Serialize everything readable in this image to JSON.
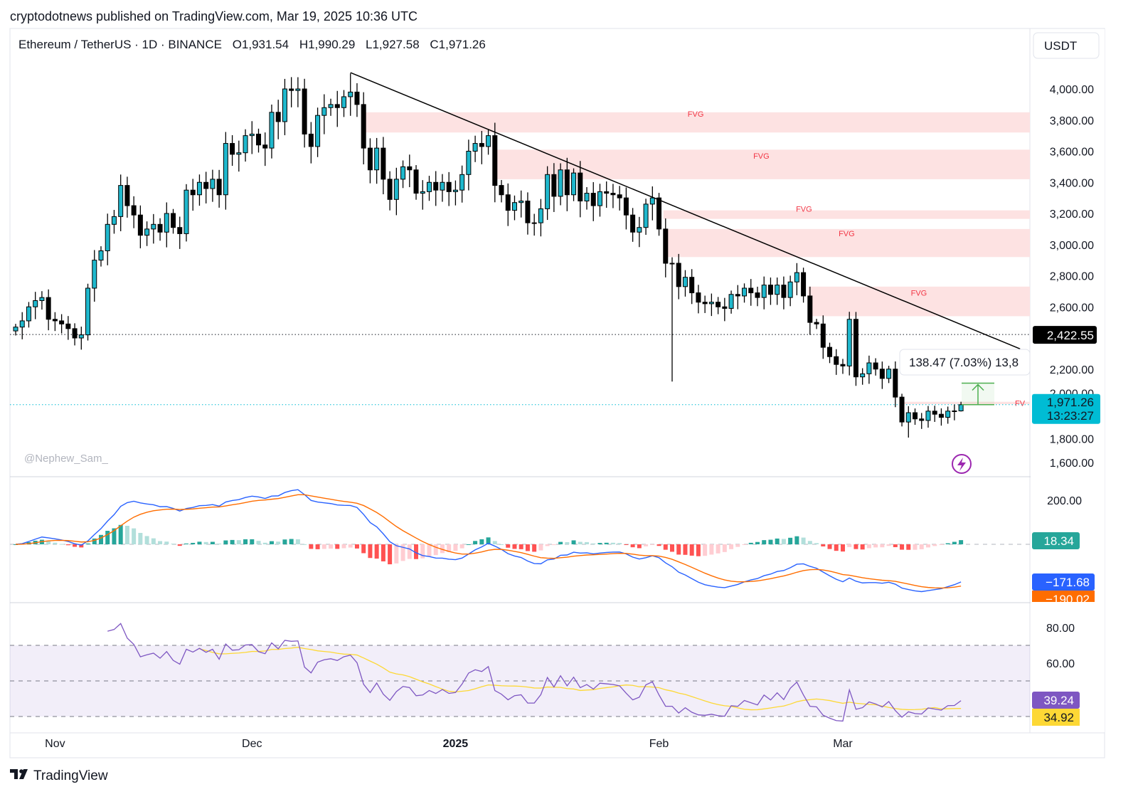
{
  "publisher_line": "cryptodotnews published on TradingView.com, Mar 19, 2025 10:36 UTC",
  "legend": {
    "symbol": "Ethereum / TetherUS · 1D · BINANCE",
    "open": "O1,931.54",
    "high": "H1,990.29",
    "low": "L1,927.58",
    "close": "C1,971.26"
  },
  "currency_button": "USDT",
  "watermark": "@Nephew_Sam_",
  "footer_logo": "TradingView",
  "colors": {
    "up": "#1fb8cd",
    "down": "#000000",
    "fvg": "#fde2e2",
    "fvg_text": "#f23645",
    "macd": "#2962ff",
    "signal": "#ff6d00",
    "rsi": "#7e57c2",
    "rsi_ma": "#fdd835",
    "price_label": "#00bcd4"
  },
  "chart_data": {
    "type": "candlestick",
    "title": "",
    "start_date": "2024-10-26",
    "end_date": "2025-03-19",
    "closes": [
      2470,
      2510,
      2600,
      2640,
      2660,
      2520,
      2510,
      2490,
      2460,
      2400,
      2420,
      2720,
      2900,
      2960,
      3130,
      3180,
      3380,
      3250,
      3190,
      3060,
      3100,
      3130,
      3080,
      3200,
      3110,
      3070,
      3350,
      3320,
      3400,
      3360,
      3420,
      3320,
      3650,
      3580,
      3590,
      3700,
      3710,
      3640,
      3620,
      3850,
      3790,
      4000,
      3990,
      4000,
      3710,
      3630,
      3830,
      3880,
      3900,
      3880,
      3950,
      3980,
      3900,
      3620,
      3480,
      3620,
      3420,
      3290,
      3420,
      3500,
      3480,
      3330,
      3340,
      3400,
      3350,
      3400,
      3340,
      3350,
      3450,
      3600,
      3650,
      3630,
      3700,
      3380,
      3320,
      3220,
      3270,
      3280,
      3140,
      3140,
      3230,
      3450,
      3310,
      3480,
      3320,
      3460,
      3280,
      3330,
      3250,
      3340,
      3330,
      3320,
      3300,
      3190,
      3080,
      3110,
      3260,
      3300,
      3100,
      2880,
      2880,
      2730,
      2790,
      2690,
      2630,
      2620,
      2630,
      2600,
      2590,
      2680,
      2670,
      2720,
      2690,
      2660,
      2740,
      2680,
      2740,
      2660,
      2760,
      2820,
      2670,
      2500,
      2490,
      2340,
      2280,
      2230,
      2220,
      2520,
      2150,
      2170,
      2240,
      2200,
      2140,
      2200,
      2020,
      1860,
      1920,
      1880,
      1870,
      1930,
      1910,
      1890,
      1930,
      1931.54,
      1971.26
    ],
    "last_candle": {
      "open": 1931.54,
      "high": 1990.29,
      "low": 1927.58,
      "close": 1971.26
    },
    "notable_wicks": [
      {
        "date": "2025-02-03",
        "low": 2120
      },
      {
        "date": "2024-12-16",
        "high": 4100
      },
      {
        "date": "2025-03-11",
        "low": 1760
      }
    ],
    "price_axis": {
      "ticks": [
        "4,000.00",
        "3,800.00",
        "3,600.00",
        "3,400.00",
        "3,200.00",
        "3,000.00",
        "2,800.00",
        "2,600.00",
        "2,200.00",
        "2,000.00",
        "1,800.00",
        "1,600.00"
      ],
      "values": [
        4000,
        3800,
        3600,
        3400,
        3200,
        3000,
        2800,
        2600,
        2200,
        2000,
        1800,
        1600
      ]
    },
    "time_axis": [
      {
        "label": "Nov",
        "date": "2024-11-01"
      },
      {
        "label": "Dec",
        "date": "2024-12-01"
      },
      {
        "label": "2025",
        "date": "2025-01-01",
        "bold": true
      },
      {
        "label": "Feb",
        "date": "2025-02-01"
      },
      {
        "label": "Mar",
        "date": "2025-03-01"
      }
    ],
    "fvg_zones": [
      {
        "label": "FVG",
        "from": "2024-12-18",
        "top": 3850,
        "bottom": 3720
      },
      {
        "label": "FVG",
        "from": "2025-01-07",
        "top": 3610,
        "bottom": 3420
      },
      {
        "label": "FVG",
        "from": "2025-02-02",
        "top": 3220,
        "bottom": 3165
      },
      {
        "label": "FVG",
        "from": "2025-02-02",
        "top": 3100,
        "bottom": 2920
      },
      {
        "label": "FVG",
        "from": "2025-02-24",
        "top": 2730,
        "bottom": 2540
      },
      {
        "label": "FV",
        "from": "2025-03-10",
        "top": 1990,
        "bottom": 1975
      }
    ],
    "trendline": {
      "from": {
        "date": "2024-12-16",
        "price": 4105
      },
      "to": {
        "date": "2025-03-28",
        "price": 2330
      }
    },
    "horizontal_level": {
      "price": 2422.55,
      "label": "2,422.55"
    },
    "last_price_label": {
      "price": "1,971.26",
      "countdown": "13:23:27"
    },
    "measure": {
      "from_price": 1971.26,
      "to_price": 2109.73,
      "text": "138.47 (7.03%) 13,8"
    },
    "macd": {
      "params": [
        12,
        26,
        9
      ],
      "axis_tick": "200.00",
      "histogram_value": "18.34",
      "macd_value": "−171.68",
      "signal_value": "−190.02"
    },
    "rsi": {
      "period": 14,
      "ma_period": 14,
      "axis_ticks": [
        "80.00",
        "60.00"
      ],
      "band": [
        30,
        70
      ],
      "mid": 50,
      "rsi_value": "39.24",
      "ma_value": "34.92"
    }
  }
}
